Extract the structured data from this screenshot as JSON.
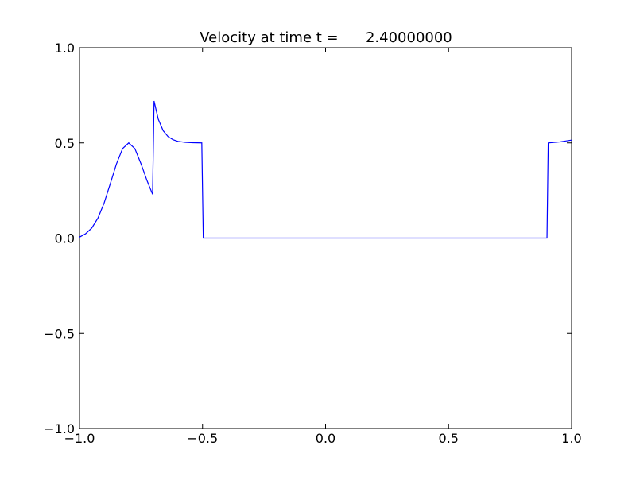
{
  "chart_data": {
    "type": "line",
    "title": "Velocity at time t =      2.40000000",
    "x": [
      -1.0,
      -0.975,
      -0.95,
      -0.925,
      -0.9,
      -0.875,
      -0.85,
      -0.825,
      -0.8,
      -0.775,
      -0.75,
      -0.725,
      -0.703,
      -0.697,
      -0.68,
      -0.66,
      -0.64,
      -0.62,
      -0.6,
      -0.57,
      -0.54,
      -0.503,
      -0.497,
      0.9,
      0.905,
      0.95,
      1.0
    ],
    "series": [
      {
        "color": "#0000ff",
        "values": [
          0.005,
          0.023,
          0.053,
          0.105,
          0.184,
          0.285,
          0.389,
          0.47,
          0.5,
          0.47,
          0.39,
          0.3,
          0.23,
          0.72,
          0.625,
          0.564,
          0.533,
          0.517,
          0.508,
          0.503,
          0.501,
          0.5,
          0.0,
          0.0,
          0.5,
          0.505,
          0.515
        ]
      }
    ],
    "xlim": [
      -1.0,
      1.0
    ],
    "ylim": [
      -1.0,
      1.0
    ],
    "xticks": [
      {
        "value": -1.0,
        "label": "−1.0"
      },
      {
        "value": -0.5,
        "label": "−0.5"
      },
      {
        "value": 0.0,
        "label": "0.0"
      },
      {
        "value": 0.5,
        "label": "0.5"
      },
      {
        "value": 1.0,
        "label": "1.0"
      }
    ],
    "yticks": [
      {
        "value": -1.0,
        "label": "−1.0"
      },
      {
        "value": -0.5,
        "label": "−0.5"
      },
      {
        "value": 0.0,
        "label": "0.0"
      },
      {
        "value": 0.5,
        "label": "0.5"
      },
      {
        "value": 1.0,
        "label": "1.0"
      }
    ],
    "grid": false
  }
}
